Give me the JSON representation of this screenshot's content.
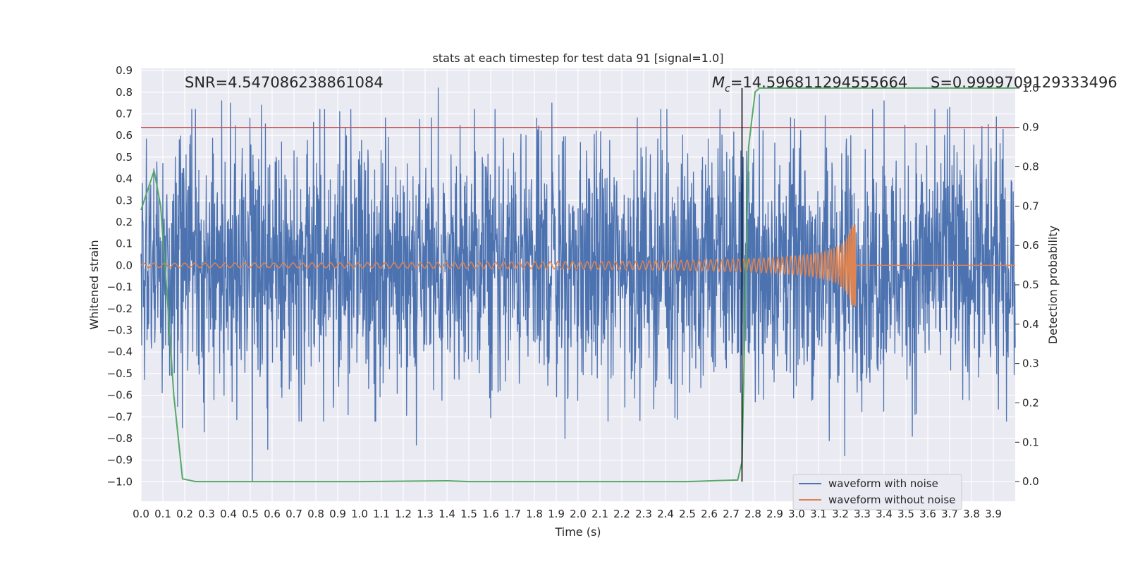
{
  "chart_data": {
    "type": "line",
    "title": "stats at each timestep for test data 91 [signal=1.0]",
    "xlabel": "Time (s)",
    "ylabel": "Whitened strain",
    "y2label": "Detection probability",
    "xlim": [
      0.0,
      4.0
    ],
    "ylim": [
      -1.09,
      0.91
    ],
    "y2lim": [
      -0.05,
      1.05
    ],
    "grid": true,
    "legend_position": "lower-right",
    "x_ticks": [
      "0.0",
      "0.1",
      "0.2",
      "0.3",
      "0.4",
      "0.5",
      "0.6",
      "0.7",
      "0.8",
      "0.9",
      "1.0",
      "1.1",
      "1.2",
      "1.3",
      "1.4",
      "1.5",
      "1.6",
      "1.7",
      "1.8",
      "1.9",
      "2.0",
      "2.1",
      "2.2",
      "2.3",
      "2.4",
      "2.5",
      "2.6",
      "2.7",
      "2.8",
      "2.9",
      "3.0",
      "3.1",
      "3.2",
      "3.3",
      "3.4",
      "3.5",
      "3.6",
      "3.7",
      "3.8",
      "3.9"
    ],
    "y_ticks": [
      "0.9",
      "0.8",
      "0.7",
      "0.6",
      "0.5",
      "0.4",
      "0.3",
      "0.2",
      "0.1",
      "0.0",
      "−0.1",
      "−0.2",
      "−0.3",
      "−0.4",
      "−0.5",
      "−0.6",
      "−0.7",
      "−0.8",
      "−0.9",
      "−1.0"
    ],
    "y2_ticks": [
      "1.0",
      "0.9",
      "0.8",
      "0.7",
      "0.6",
      "0.5",
      "0.4",
      "0.3",
      "0.2",
      "0.1",
      "0.0"
    ],
    "annotations": {
      "snr": "SNR=4.547086238861084",
      "mc_symbol": "M",
      "mc_subscript": "c",
      "mc_value": "=14.596811294555664",
      "s": "S=0.9999709129333496"
    },
    "threshold_probability": 0.9,
    "merger_time": 2.75,
    "series": [
      {
        "name": "waveform with noise",
        "color": "#4c72b0",
        "description_of_values": "whitened noise, amplitude mostly within ±0.45 with spikes to about ±0.8",
        "amplitude_typical": 0.45,
        "peaks_high": [
          [
            0.37,
            0.76
          ],
          [
            0.41,
            0.75
          ],
          [
            0.55,
            0.74
          ],
          [
            0.84,
            0.72
          ],
          [
            0.96,
            0.72
          ],
          [
            1.36,
            0.82
          ],
          [
            1.88,
            0.75
          ],
          [
            2.83,
            0.79
          ],
          [
            3.4,
            0.76
          ],
          [
            3.7,
            0.73
          ]
        ],
        "peaks_low": [
          [
            0.19,
            -0.75
          ],
          [
            0.29,
            -0.77
          ],
          [
            0.51,
            -1.0
          ],
          [
            0.58,
            -0.85
          ],
          [
            1.26,
            -0.83
          ],
          [
            1.94,
            -0.8
          ],
          [
            3.15,
            -0.81
          ],
          [
            3.22,
            -0.88
          ],
          [
            3.53,
            -0.79
          ]
        ]
      },
      {
        "name": "waveform without noise",
        "color": "#dd8452",
        "description_of_values": "chirp signal with amplitude growing from 0.01 to 0.19 until merger near 3.27 s, then flat at 0",
        "chirp_end_time": 3.27,
        "peak_amplitude": 0.19
      },
      {
        "color": "#55a868",
        "axis": "right",
        "x": [
          0.0,
          0.06,
          0.09,
          0.12,
          0.15,
          0.19,
          0.25,
          0.5,
          1.0,
          1.4,
          1.5,
          2.0,
          2.5,
          2.73,
          2.75,
          2.78,
          2.81,
          2.83,
          3.0,
          3.5,
          4.0
        ],
        "values": [
          0.69,
          0.79,
          0.7,
          0.47,
          0.22,
          0.007,
          0.0,
          0.0,
          0.0,
          0.002,
          0.0,
          0.0,
          0.0,
          0.004,
          0.05,
          0.85,
          0.99,
          1.0,
          1.0,
          1.0,
          1.0
        ]
      }
    ]
  }
}
